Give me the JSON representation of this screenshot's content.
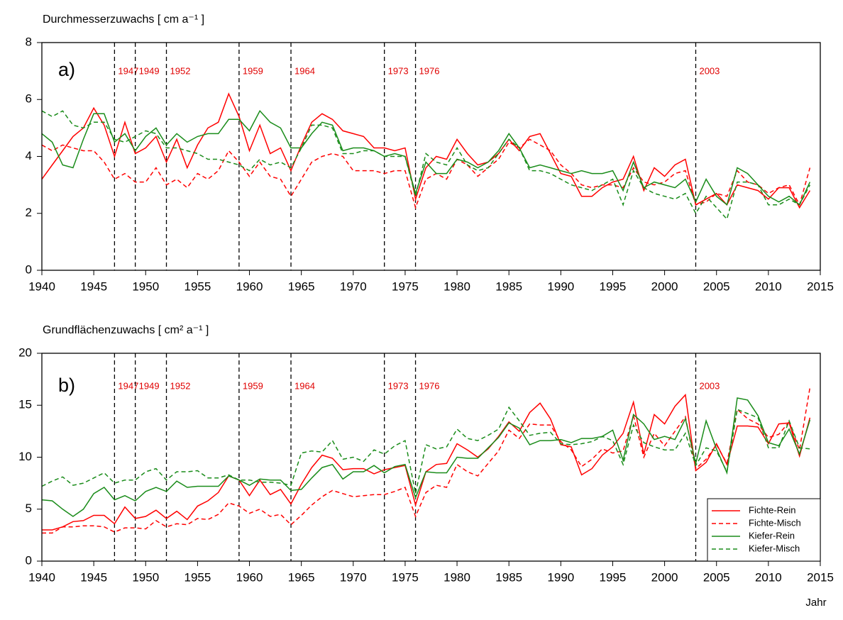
{
  "chart_data": [
    {
      "type": "line",
      "ylabel": "Durchmesserzuwachs  [ cm  a⁻¹ ]",
      "panel_label": "a)",
      "x": [
        1940,
        1941,
        1942,
        1943,
        1944,
        1945,
        1946,
        1947,
        1948,
        1949,
        1950,
        1951,
        1952,
        1953,
        1954,
        1955,
        1956,
        1957,
        1958,
        1959,
        1960,
        1961,
        1962,
        1963,
        1964,
        1965,
        1966,
        1967,
        1968,
        1969,
        1970,
        1971,
        1972,
        1973,
        1974,
        1975,
        1976,
        1977,
        1978,
        1979,
        1980,
        1981,
        1982,
        1983,
        1984,
        1985,
        1986,
        1987,
        1988,
        1989,
        1990,
        1991,
        1992,
        1993,
        1994,
        1995,
        1996,
        1997,
        1998,
        1999,
        2000,
        2001,
        2002,
        2003,
        2004,
        2005,
        2006,
        2007,
        2008,
        2009,
        2010,
        2011,
        2012,
        2013,
        2014
      ],
      "series": [
        {
          "color": "#ff0000",
          "dashed": false,
          "values": [
            3.2,
            3.7,
            4.2,
            4.7,
            5.0,
            5.7,
            5.1,
            4.0,
            5.2,
            4.1,
            4.3,
            4.7,
            3.8,
            4.6,
            3.6,
            4.4,
            5.0,
            5.2,
            6.2,
            5.4,
            4.2,
            5.1,
            4.1,
            4.3,
            3.5,
            4.4,
            5.2,
            5.5,
            5.3,
            4.9,
            4.8,
            4.7,
            4.3,
            4.3,
            4.2,
            4.3,
            2.5,
            3.6,
            4.0,
            3.9,
            4.6,
            4.1,
            3.7,
            3.8,
            4.1,
            4.6,
            4.2,
            4.7,
            4.8,
            4.1,
            3.4,
            3.3,
            2.6,
            2.6,
            2.9,
            3.1,
            3.2,
            4.0,
            2.8,
            3.6,
            3.3,
            3.7,
            3.9,
            2.3,
            2.5,
            2.7,
            2.3,
            3.0,
            2.9,
            2.8,
            2.5,
            2.9,
            2.9,
            2.2,
            2.8
          ]
        },
        {
          "color": "#ff0000",
          "dashed": true,
          "values": [
            4.4,
            4.2,
            4.4,
            4.3,
            4.2,
            4.2,
            3.8,
            3.2,
            3.4,
            3.1,
            3.1,
            3.6,
            3.0,
            3.2,
            2.9,
            3.4,
            3.2,
            3.5,
            4.2,
            3.8,
            3.3,
            3.8,
            3.3,
            3.2,
            2.6,
            3.2,
            3.8,
            4.0,
            4.1,
            4.0,
            3.5,
            3.5,
            3.5,
            3.4,
            3.5,
            3.5,
            2.2,
            3.2,
            3.4,
            3.2,
            3.9,
            3.7,
            3.3,
            3.6,
            3.9,
            4.5,
            4.3,
            4.6,
            4.4,
            4.2,
            3.7,
            3.4,
            3.0,
            2.9,
            3.0,
            3.0,
            2.9,
            3.6,
            3.1,
            3.0,
            3.1,
            3.4,
            3.5,
            2.3,
            2.4,
            2.7,
            2.6,
            3.5,
            3.1,
            3.0,
            2.7,
            2.9,
            3.0,
            2.3,
            3.6
          ]
        },
        {
          "color": "#1a8c1a",
          "dashed": false,
          "values": [
            4.8,
            4.5,
            3.7,
            3.6,
            4.6,
            5.5,
            5.5,
            4.5,
            4.8,
            4.2,
            4.7,
            5.0,
            4.4,
            4.8,
            4.5,
            4.7,
            4.8,
            4.8,
            5.3,
            5.3,
            4.9,
            5.6,
            5.2,
            5.0,
            4.3,
            4.3,
            4.8,
            5.2,
            5.1,
            4.2,
            4.3,
            4.3,
            4.2,
            4.0,
            4.1,
            4.0,
            2.7,
            3.8,
            3.4,
            3.4,
            3.9,
            3.8,
            3.6,
            3.8,
            4.2,
            4.8,
            4.3,
            3.6,
            3.7,
            3.6,
            3.5,
            3.4,
            3.5,
            3.4,
            3.4,
            3.5,
            2.8,
            3.8,
            2.9,
            3.1,
            3.0,
            2.9,
            3.2,
            2.4,
            3.2,
            2.6,
            2.3,
            3.6,
            3.4,
            3.0,
            2.6,
            2.4,
            2.6,
            2.3,
            3.1
          ]
        },
        {
          "color": "#1a8c1a",
          "dashed": true,
          "values": [
            5.6,
            5.4,
            5.6,
            5.1,
            5.0,
            5.2,
            5.2,
            4.6,
            4.5,
            4.7,
            4.9,
            4.8,
            4.3,
            4.3,
            4.2,
            4.1,
            3.9,
            3.9,
            3.8,
            3.7,
            3.5,
            3.9,
            3.7,
            3.8,
            3.6,
            4.3,
            5.1,
            5.1,
            5.0,
            4.1,
            4.1,
            4.2,
            4.2,
            4.0,
            4.0,
            4.0,
            2.6,
            4.1,
            3.8,
            3.7,
            4.3,
            3.7,
            3.5,
            3.6,
            4.1,
            4.6,
            4.3,
            3.5,
            3.5,
            3.4,
            3.2,
            3.0,
            2.9,
            2.8,
            3.0,
            3.2,
            2.3,
            3.5,
            2.9,
            2.7,
            2.6,
            2.5,
            2.7,
            2.0,
            2.6,
            2.2,
            1.8,
            3.1,
            3.1,
            3.0,
            2.3,
            2.3,
            2.5,
            2.3,
            3.0
          ]
        }
      ],
      "events": [
        1947,
        1949,
        1952,
        1959,
        1964,
        1973,
        1976,
        2003
      ],
      "xlim": [
        1940,
        2015
      ],
      "xticks": [
        1940,
        1945,
        1950,
        1955,
        1960,
        1965,
        1970,
        1975,
        1980,
        1985,
        1990,
        1995,
        2000,
        2005,
        2010,
        2015
      ],
      "ylim": [
        0,
        8
      ],
      "yticks": [
        0,
        2,
        4,
        6,
        8
      ]
    },
    {
      "type": "line",
      "ylabel": "Grundflächenzuwachs  [ cm²  a⁻¹ ]",
      "panel_label": "b)",
      "xlabel": "Jahr",
      "x": [
        1940,
        1941,
        1942,
        1943,
        1944,
        1945,
        1946,
        1947,
        1948,
        1949,
        1950,
        1951,
        1952,
        1953,
        1954,
        1955,
        1956,
        1957,
        1958,
        1959,
        1960,
        1961,
        1962,
        1963,
        1964,
        1965,
        1966,
        1967,
        1968,
        1969,
        1970,
        1971,
        1972,
        1973,
        1974,
        1975,
        1976,
        1977,
        1978,
        1979,
        1980,
        1981,
        1982,
        1983,
        1984,
        1985,
        1986,
        1987,
        1988,
        1989,
        1990,
        1991,
        1992,
        1993,
        1994,
        1995,
        1996,
        1997,
        1998,
        1999,
        2000,
        2001,
        2002,
        2003,
        2004,
        2005,
        2006,
        2007,
        2008,
        2009,
        2010,
        2011,
        2012,
        2013,
        2014
      ],
      "series": [
        {
          "name": "Fichte-Rein",
          "color": "#ff0000",
          "dashed": false,
          "values": [
            3.0,
            3.0,
            3.3,
            3.8,
            3.9,
            4.4,
            4.4,
            3.6,
            5.2,
            4.1,
            4.3,
            4.9,
            4.1,
            4.8,
            4.0,
            5.3,
            5.8,
            6.6,
            8.2,
            7.8,
            6.3,
            7.8,
            6.4,
            6.9,
            5.5,
            7.4,
            9.0,
            10.2,
            9.9,
            8.8,
            8.9,
            8.9,
            8.4,
            8.8,
            9.0,
            9.2,
            5.4,
            8.6,
            9.3,
            9.4,
            11.3,
            10.7,
            10.0,
            10.8,
            12.0,
            13.4,
            12.5,
            14.3,
            15.2,
            13.7,
            11.2,
            11.0,
            8.3,
            8.9,
            10.2,
            11.0,
            12.3,
            15.3,
            10.3,
            14.1,
            13.2,
            14.9,
            16.0,
            8.7,
            9.5,
            11.3,
            9.3,
            13.0,
            13.0,
            12.9,
            11.3,
            13.2,
            13.3,
            10.1,
            13.8
          ]
        },
        {
          "name": "Fichte-Misch",
          "color": "#ff0000",
          "dashed": true,
          "values": [
            2.7,
            2.7,
            3.3,
            3.3,
            3.4,
            3.4,
            3.3,
            2.8,
            3.2,
            3.2,
            3.1,
            3.9,
            3.3,
            3.6,
            3.5,
            4.1,
            4.0,
            4.5,
            5.6,
            5.3,
            4.6,
            5.0,
            4.3,
            4.5,
            3.5,
            4.4,
            5.4,
            6.2,
            6.8,
            6.5,
            6.2,
            6.3,
            6.4,
            6.4,
            6.7,
            7.1,
            4.3,
            6.6,
            7.3,
            7.1,
            9.3,
            8.6,
            8.2,
            9.4,
            10.6,
            12.6,
            11.8,
            13.2,
            13.1,
            13.1,
            11.5,
            10.7,
            9.1,
            9.8,
            10.8,
            10.4,
            10.6,
            14.0,
            10.0,
            12.3,
            11.1,
            12.5,
            13.9,
            8.9,
            9.8,
            11.2,
            9.4,
            14.6,
            13.7,
            13.2,
            11.9,
            12.2,
            13.4,
            10.7,
            16.7
          ]
        },
        {
          "name": "Kiefer-Rein",
          "color": "#1a8c1a",
          "dashed": false,
          "values": [
            5.9,
            5.8,
            5.0,
            4.3,
            5.0,
            6.5,
            7.1,
            5.9,
            6.3,
            5.8,
            6.7,
            7.1,
            6.7,
            7.7,
            7.1,
            7.2,
            7.2,
            7.2,
            8.2,
            7.8,
            7.3,
            7.9,
            7.8,
            7.8,
            6.8,
            6.9,
            8.0,
            9.0,
            9.3,
            7.9,
            8.6,
            8.6,
            9.2,
            8.5,
            9.1,
            9.3,
            6.1,
            8.6,
            8.5,
            8.5,
            10.0,
            9.9,
            9.9,
            10.9,
            11.9,
            13.3,
            12.8,
            11.2,
            11.6,
            11.6,
            11.7,
            11.4,
            11.8,
            11.8,
            12.0,
            12.6,
            9.7,
            14.1,
            13.2,
            11.7,
            12.0,
            11.7,
            13.7,
            9.4,
            13.5,
            10.8,
            8.5,
            15.7,
            15.5,
            14.0,
            11.4,
            11.1,
            12.7,
            10.3,
            13.6
          ]
        },
        {
          "name": "Kiefer-Misch",
          "color": "#1a8c1a",
          "dashed": true,
          "values": [
            7.2,
            7.7,
            8.1,
            7.3,
            7.5,
            8.0,
            8.5,
            7.5,
            7.8,
            7.8,
            8.6,
            8.9,
            7.8,
            8.6,
            8.6,
            8.7,
            8.0,
            8.0,
            8.3,
            7.8,
            7.8,
            7.6,
            7.6,
            7.5,
            7.3,
            10.4,
            10.6,
            10.5,
            11.6,
            9.8,
            10.0,
            9.6,
            10.7,
            10.3,
            11.1,
            11.6,
            6.5,
            11.2,
            10.8,
            11.0,
            12.7,
            11.8,
            11.6,
            12.1,
            12.7,
            14.8,
            13.5,
            12.1,
            12.3,
            12.4,
            11.3,
            11.2,
            11.3,
            11.5,
            12.0,
            11.6,
            9.3,
            13.1,
            11.4,
            11.0,
            10.7,
            10.7,
            12.3,
            9.2,
            10.9,
            10.6,
            8.6,
            14.6,
            14.2,
            13.8,
            10.9,
            10.9,
            13.5,
            10.9,
            10.8
          ]
        }
      ],
      "events": [
        1947,
        1949,
        1952,
        1959,
        1964,
        1973,
        1976,
        2003
      ],
      "legend": "bottom-right",
      "xlim": [
        1940,
        2015
      ],
      "xticks": [
        1940,
        1945,
        1950,
        1955,
        1960,
        1965,
        1970,
        1975,
        1980,
        1985,
        1990,
        1995,
        2000,
        2005,
        2010,
        2015
      ],
      "ylim": [
        0,
        20
      ],
      "yticks": [
        0,
        5,
        10,
        15,
        20
      ]
    }
  ]
}
